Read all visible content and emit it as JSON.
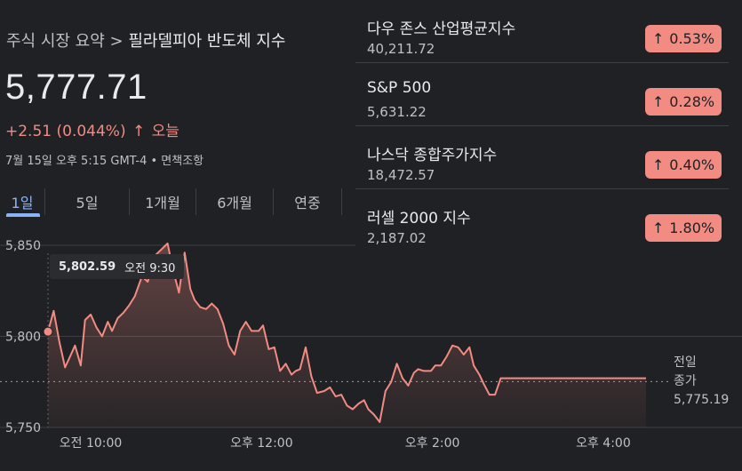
{
  "breadcrumb": {
    "parent": "주식 시장 요약",
    "separator": ">",
    "current": "필라델피아 반도체 지수"
  },
  "quote": {
    "price": "5,777.71",
    "change": "+2.51 (0.044%)",
    "arrow": "↑",
    "period": "오늘",
    "meta": "7월 15일 오후 5:15 GMT-4 • 면책조항"
  },
  "tabs": [
    "1일",
    "5일",
    "1개월",
    "6개월",
    "연중"
  ],
  "active_tab": "1일",
  "tooltip": {
    "value": "5,802.59",
    "time": "오전 9:30"
  },
  "previous_close": {
    "label1": "전일",
    "label2": "종가",
    "value": "5,775.19"
  },
  "indices": [
    {
      "name": "다우 존스 산업평균지수",
      "value": "40,211.72",
      "change": "0.53%",
      "arrow": "↑"
    },
    {
      "name": "S&P 500",
      "value": "5,631.22",
      "change": "0.28%",
      "arrow": "↑"
    },
    {
      "name": "나스닥 종합주가지수",
      "value": "18,472.57",
      "change": "0.40%",
      "arrow": "↑"
    },
    {
      "name": "러셀 2000 지수",
      "value": "2,187.02",
      "change": "1.80%",
      "arrow": "↑"
    }
  ],
  "colors": {
    "positive": "#f28b82",
    "accent": "#8ab4f8",
    "background": "#202124"
  },
  "chart_data": {
    "type": "area",
    "yticks": [
      "5,850",
      "5,800",
      "5,750"
    ],
    "ytick_values": [
      5850,
      5800,
      5750
    ],
    "ylim": [
      5750,
      5850
    ],
    "xticks": [
      "오전 10:00",
      "오후 12:00",
      "오후 2:00",
      "오후 4:00"
    ],
    "xtick_minutes": [
      600,
      720,
      840,
      960
    ],
    "xlim_minutes": [
      570,
      1000
    ],
    "previous_close": 5775.19,
    "series": [
      {
        "x_minutes": [
          570,
          574,
          578,
          582,
          585,
          589,
          593,
          596,
          600,
          604,
          608,
          612,
          615,
          619,
          623,
          627,
          631,
          636,
          640,
          643,
          646,
          650,
          654,
          658,
          662,
          666,
          670,
          673,
          677,
          681,
          685,
          689,
          693,
          697,
          701,
          705,
          709,
          713,
          718,
          721,
          725,
          729,
          733,
          737,
          741,
          744,
          747,
          751,
          755,
          759,
          764,
          768,
          772,
          776,
          780,
          784,
          788,
          792,
          795,
          799,
          803,
          807,
          811,
          815,
          819,
          823,
          827,
          830,
          834,
          839,
          842,
          846,
          850,
          854,
          858,
          862,
          866,
          869,
          873,
          876,
          880,
          884,
          888,
          892,
          896,
          900,
          904,
          908,
          911,
          915,
          919,
          923,
          927,
          931,
          935,
          939,
          943,
          962,
          976,
          990
        ],
        "y": [
          5802.6,
          5814,
          5797,
          5783,
          5788,
          5795,
          5784,
          5809,
          5812,
          5805,
          5800,
          5808,
          5803,
          5810,
          5813,
          5817,
          5822,
          5833,
          5830,
          5837,
          5845,
          5848,
          5851,
          5836,
          5824,
          5846,
          5826,
          5820,
          5816,
          5815,
          5818,
          5815,
          5807,
          5795,
          5790,
          5803,
          5808,
          5803,
          5803,
          5806,
          5793,
          5794,
          5781,
          5785,
          5779,
          5781,
          5782,
          5794,
          5778,
          5769,
          5770,
          5772,
          5767,
          5768,
          5762,
          5760,
          5763,
          5765,
          5760,
          5757,
          5753,
          5770,
          5775,
          5785,
          5777,
          5773,
          5780,
          5782,
          5781,
          5781,
          5784,
          5784,
          5789,
          5795,
          5794,
          5790,
          5794,
          5784,
          5779,
          5774,
          5768,
          5768,
          5777,
          5777,
          5777,
          5777,
          5777,
          5777,
          5777,
          5777,
          5777,
          5777,
          5777,
          5777,
          5777,
          5777,
          5777,
          5777,
          5777,
          5777
        ]
      }
    ]
  }
}
